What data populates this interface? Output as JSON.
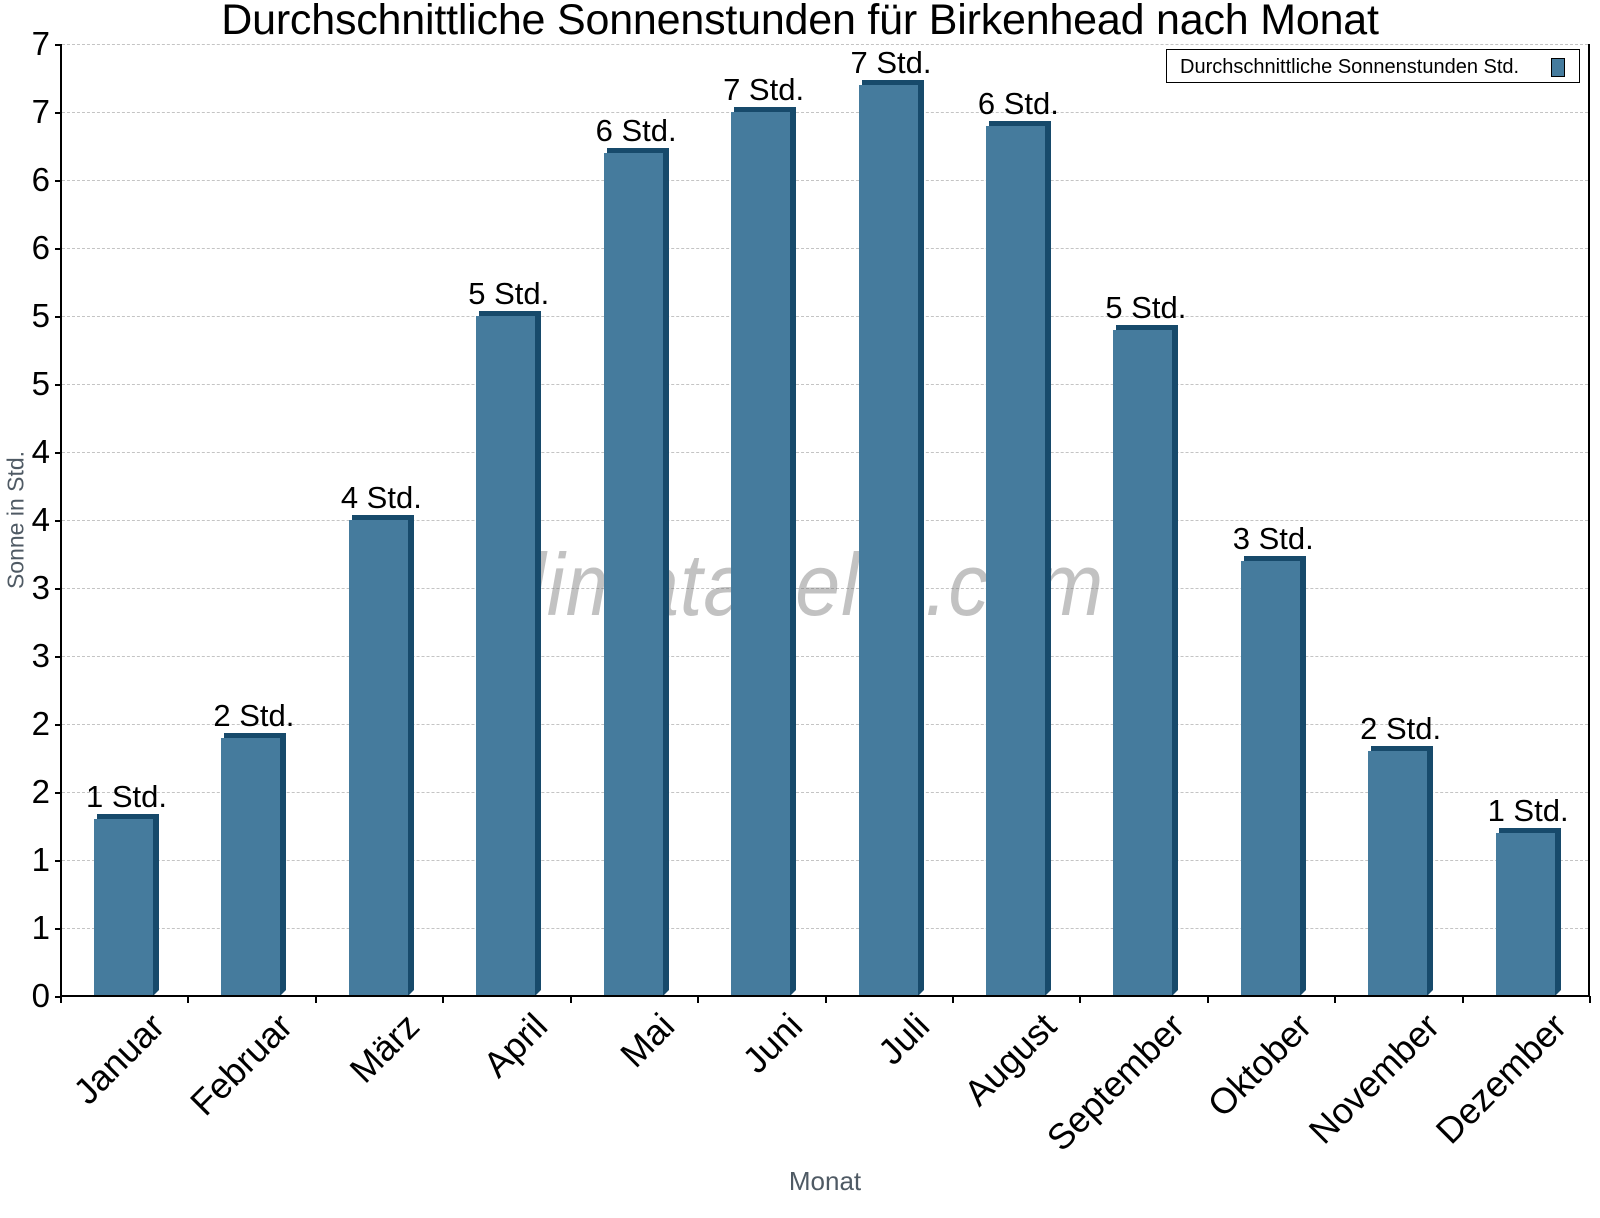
{
  "chart": {
    "title": "Durchschnittliche Sonnenstunden für Birkenhead nach Monat",
    "y_axis_title": "Sonne in Std.",
    "x_axis_title": "Monat",
    "legend_label": "Durchschnittliche Sonnenstunden Std.",
    "watermark": "klimatabelle.com",
    "y_tick_labels": [
      "0",
      "1",
      "1",
      "2",
      "2",
      "3",
      "3",
      "4",
      "4",
      "5",
      "5",
      "6",
      "6",
      "7",
      "7"
    ],
    "colors": {
      "bar_front": "#457b9d",
      "bar_side": "#174a6b"
    }
  },
  "chart_data": {
    "type": "bar",
    "title": "Durchschnittliche Sonnenstunden für Birkenhead nach Monat",
    "xlabel": "Monat",
    "ylabel": "Sonne in Std.",
    "ylim": [
      0,
      7
    ],
    "yticks": [
      0,
      0.5,
      1,
      1.5,
      2,
      2.5,
      3,
      3.5,
      4,
      4.5,
      5,
      5.5,
      6,
      6.5,
      7
    ],
    "grid": true,
    "legend_position": "top-right",
    "categories": [
      "Januar",
      "Februar",
      "März",
      "April",
      "Mai",
      "Juni",
      "Juli",
      "August",
      "September",
      "Oktober",
      "November",
      "Dezember"
    ],
    "series": [
      {
        "name": "Durchschnittliche Sonnenstunden Std.",
        "values": [
          1.3,
          1.9,
          3.5,
          5.0,
          6.2,
          6.5,
          6.7,
          6.4,
          4.9,
          3.2,
          1.8,
          1.2
        ],
        "data_labels": [
          "1 Std.",
          "2 Std.",
          "4 Std.",
          "5 Std.",
          "6 Std.",
          "7 Std.",
          "7 Std.",
          "6 Std.",
          "5 Std.",
          "3 Std.",
          "2 Std.",
          "1 Std."
        ]
      }
    ]
  }
}
